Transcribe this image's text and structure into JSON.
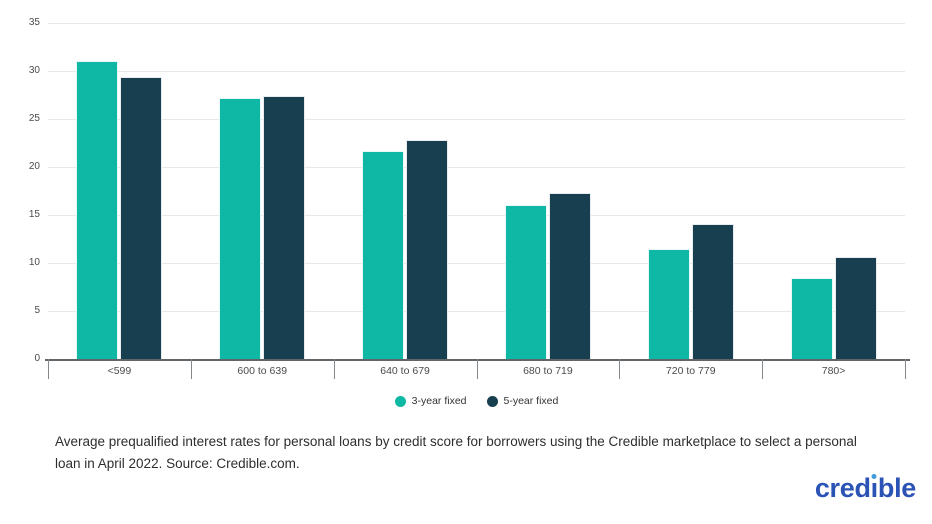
{
  "chart_data": {
    "type": "bar",
    "title": "",
    "categories": [
      "<599",
      "600 to 639",
      "640 to 679",
      "680 to 719",
      "720 to 779",
      "780>"
    ],
    "series": [
      {
        "name": "3-year fixed",
        "color": "#0fb8a4",
        "values": [
          31.0,
          27.2,
          21.7,
          16.0,
          11.5,
          8.4
        ]
      },
      {
        "name": "5-year fixed",
        "color": "#173f4f",
        "values": [
          29.4,
          27.4,
          22.8,
          17.3,
          14.1,
          10.6
        ]
      }
    ],
    "xlabel": "",
    "ylabel": "",
    "ylim": [
      0,
      35
    ],
    "yticks": [
      0,
      5,
      10,
      15,
      20,
      25,
      30,
      35
    ],
    "grid": true,
    "legend_position": "bottom",
    "gridline_color": "#e8e8e8",
    "axis_color": "#5f6569"
  },
  "caption": "Average prequalified interest rates for personal loans by credit score for borrowers using the Credible marketplace to select a personal loan in April 2022. Source: Credible.com.",
  "logo": {
    "text": "credible",
    "color": "#2a53b5",
    "i_dot_color": "#3e9bdc"
  }
}
